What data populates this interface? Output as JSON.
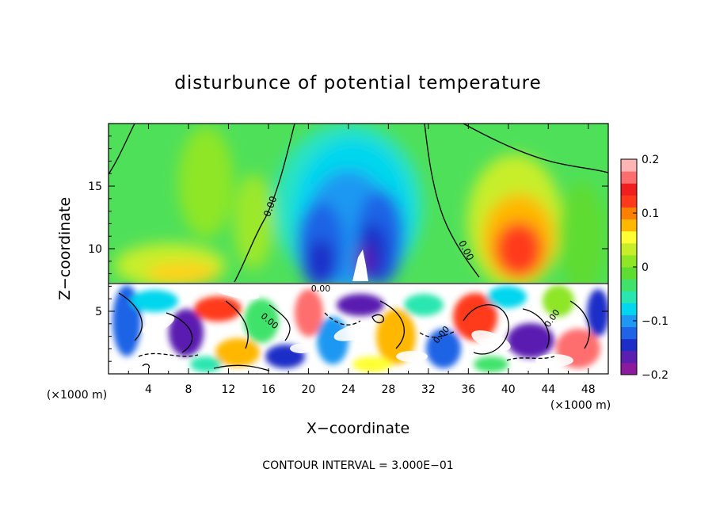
{
  "chart_data": {
    "type": "heatmap",
    "title": "disturbunce of potential temperature",
    "xlabel": "X−coordinate",
    "ylabel": "Z−coordinate",
    "x_unit": "(×1000 m)",
    "x_unit_right": "(×1000 m)",
    "footer": "CONTOUR INTERVAL = 3.000E−01",
    "xlim": [
      0,
      50
    ],
    "ylim": [
      0,
      20
    ],
    "x_ticks": [
      4,
      8,
      12,
      16,
      20,
      24,
      28,
      32,
      36,
      40,
      44,
      48
    ],
    "x_tick_labels": [
      "4",
      "8",
      "12",
      "16",
      "20",
      "24",
      "28",
      "32",
      "36",
      "40",
      "44",
      "48"
    ],
    "y_ticks": [
      5,
      10,
      15
    ],
    "y_tick_labels": [
      "5",
      "10",
      "15"
    ],
    "colorbar": {
      "range": [
        -0.2,
        0.2
      ],
      "ticks": [
        0.2,
        0.1,
        0,
        -0.1,
        -0.2
      ],
      "tick_labels": [
        "0.2",
        "0.1",
        "0",
        "−0.1",
        "−0.2"
      ],
      "colors": [
        "#8b1a9e",
        "#5a1fb0",
        "#1d2ec8",
        "#1f63e6",
        "#1e98f2",
        "#00d6ee",
        "#29e6b0",
        "#3fe36a",
        "#5fdc32",
        "#8ee626",
        "#c8ee2a",
        "#ffff33",
        "#ffb700",
        "#ff7f00",
        "#ff3a1a",
        "#f01e1e",
        "#ff6e6e",
        "#ffb4b4"
      ]
    },
    "contour_labels": [
      "0.00",
      "0.00",
      "0.00",
      "0.00",
      "0.00",
      "0.00"
    ],
    "grid": false
  }
}
